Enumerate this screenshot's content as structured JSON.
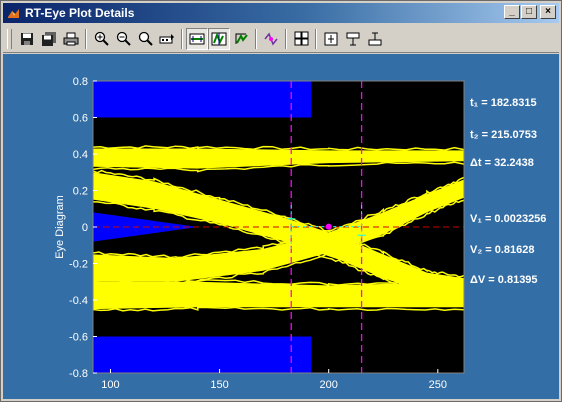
{
  "window": {
    "title": "RT-Eye Plot Details",
    "buttons": {
      "minimize": "_",
      "maximize": "□",
      "close": "×"
    }
  },
  "toolbar": {
    "items": [
      {
        "icon": "save-icon"
      },
      {
        "icon": "save-all-icon"
      },
      {
        "icon": "print-icon"
      },
      {
        "icon": "zoom-in-icon"
      },
      {
        "icon": "zoom-out-icon"
      },
      {
        "icon": "zoom-reset-icon"
      },
      {
        "icon": "data-cursor-icon"
      },
      {
        "icon": "horizontal-cursor-icon",
        "active": true
      },
      {
        "icon": "vertical-cursor-icon",
        "active": true
      },
      {
        "icon": "fit-icon"
      },
      {
        "icon": "marker-icon"
      },
      {
        "icon": "grid-icon"
      },
      {
        "icon": "insert-icon"
      },
      {
        "icon": "dock-icon"
      },
      {
        "icon": "undock-icon"
      }
    ]
  },
  "chart_data": {
    "type": "line",
    "title": "",
    "xlabel": "",
    "ylabel": "Eye Diagram",
    "xlim": [
      92,
      262
    ],
    "ylim": [
      -0.8,
      0.8
    ],
    "xticks": [
      100,
      150,
      200,
      250
    ],
    "yticks": [
      -0.8,
      -0.6,
      -0.4,
      -0.2,
      0,
      0.2,
      0.4,
      0.6,
      0.8
    ],
    "xtick_labels": [
      "100",
      "150",
      "200",
      "250"
    ],
    "ytick_labels": [
      "-0.8",
      "-0.6",
      "-0.4",
      "-0.2",
      "0",
      "0.2",
      "0.4",
      "0.6",
      "0.8"
    ],
    "colors": {
      "background": "#000000",
      "mask": "#0000ff",
      "trace": "#ffff00",
      "cursor": "#ff00ff",
      "crosshair": "#00ffff",
      "reference": "#cc0000",
      "figure": "#336ea6"
    },
    "mask_regions": [
      {
        "name": "top-mask",
        "polygon": [
          [
            92,
            0.8
          ],
          [
            192,
            0.8
          ],
          [
            192,
            0.6
          ],
          [
            92,
            0.6
          ]
        ]
      },
      {
        "name": "bottom-mask",
        "polygon": [
          [
            92,
            -0.6
          ],
          [
            192,
            -0.6
          ],
          [
            192,
            -0.8
          ],
          [
            92,
            -0.8
          ]
        ]
      },
      {
        "name": "left-mask",
        "polygon": [
          [
            92,
            0.08
          ],
          [
            140,
            0
          ],
          [
            92,
            -0.08
          ]
        ]
      }
    ],
    "trace_bands": [
      {
        "name": "top-rail",
        "upper": [
          [
            92,
            0.43
          ],
          [
            140,
            0.43
          ],
          [
            200,
            0.42
          ],
          [
            262,
            0.42
          ]
        ],
        "lower": [
          [
            92,
            0.33
          ],
          [
            140,
            0.32
          ],
          [
            200,
            0.35
          ],
          [
            262,
            0.36
          ]
        ]
      },
      {
        "name": "bottom-rail",
        "upper": [
          [
            92,
            -0.3
          ],
          [
            140,
            -0.3
          ],
          [
            200,
            -0.32
          ],
          [
            262,
            -0.3
          ]
        ],
        "lower": [
          [
            92,
            -0.45
          ],
          [
            140,
            -0.44
          ],
          [
            200,
            -0.44
          ],
          [
            262,
            -0.44
          ]
        ]
      },
      {
        "name": "falling-edge",
        "upper": [
          [
            92,
            0.3
          ],
          [
            120,
            0.25
          ],
          [
            150,
            0.15
          ],
          [
            180,
            0.05
          ],
          [
            205,
            -0.05
          ],
          [
            225,
            -0.15
          ],
          [
            245,
            -0.25
          ],
          [
            262,
            -0.28
          ]
        ],
        "lower": [
          [
            92,
            0.15
          ],
          [
            120,
            0.1
          ],
          [
            150,
            0.02
          ],
          [
            180,
            -0.08
          ],
          [
            205,
            -0.18
          ],
          [
            225,
            -0.28
          ],
          [
            245,
            -0.36
          ],
          [
            262,
            -0.4
          ]
        ]
      },
      {
        "name": "rising-edge",
        "upper": [
          [
            92,
            -0.15
          ],
          [
            130,
            -0.17
          ],
          [
            170,
            -0.12
          ],
          [
            200,
            -0.03
          ],
          [
            225,
            0.08
          ],
          [
            245,
            0.18
          ],
          [
            262,
            0.26
          ]
        ],
        "lower": [
          [
            92,
            -0.3
          ],
          [
            130,
            -0.3
          ],
          [
            170,
            -0.24
          ],
          [
            200,
            -0.14
          ],
          [
            225,
            -0.04
          ],
          [
            245,
            0.08
          ],
          [
            262,
            0.16
          ]
        ]
      }
    ],
    "cursors": {
      "t1": 182.8315,
      "t2": 215.0753,
      "v1": 0.0023256,
      "v2": 0.81628
    },
    "crossing_point": [
      200,
      0.0023256
    ]
  },
  "info": {
    "t1": "t₁ = 182.8315",
    "t2": "t₂ = 215.0753",
    "dt": "Δt  = 32.2438",
    "v1": "V₁ = 0.0023256",
    "v2": "V₂ = 0.81628",
    "dv": "ΔV  = 0.81395"
  }
}
